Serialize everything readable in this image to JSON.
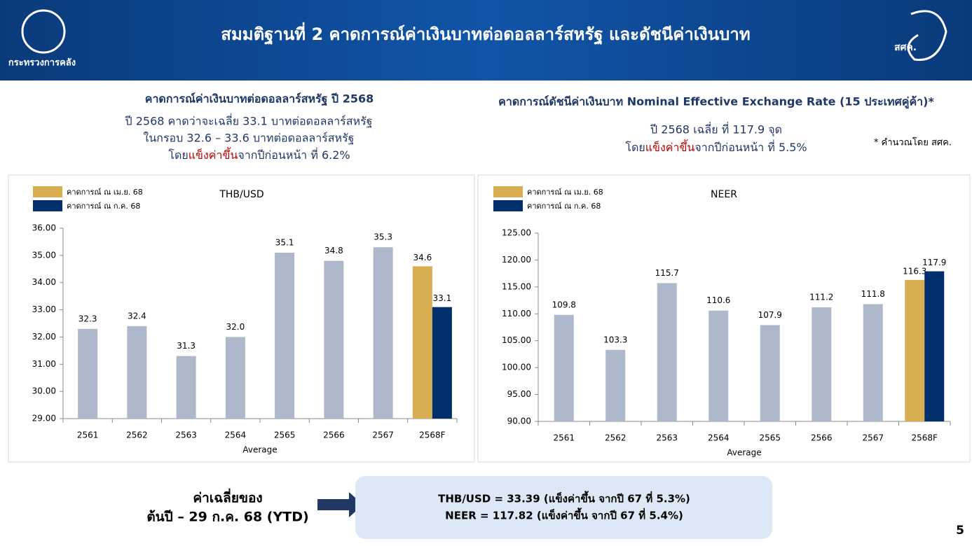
{
  "header": {
    "title": "สมมติฐานที่ 2 คาดการณ์ค่าเงินบาทต่อดอลลาร์สหรัฐ และดัชนีค่าเงินบาท",
    "left_logo": "กระทรวงการคลัง",
    "right_logo": "สศค."
  },
  "left_section": {
    "heading": "คาดการณ์ค่าเงินบาทต่อดอลลาร์สหรัฐ ปี 2568",
    "line1": "ปี 2568 คาดว่าจะเฉลี่ย 33.1 บาทต่อดอลลาร์สหรัฐ",
    "line2": "ในกรอบ 32.6 – 33.6 บาทต่อดอลลาร์สหรัฐ",
    "line3": [
      "โดย",
      "แข็งค่าขึ้น",
      "จากปีก่อนหน้า ที่ 6.2%"
    ]
  },
  "right_section": {
    "heading": "คาดการณ์ดัชนีค่าเงินบาท Nominal Effective Exchange Rate (15 ประเทศคู่ค้า)*",
    "line1": "ปี 2568 เฉลี่ย ที่ 117.9 จุด",
    "line2": [
      "โดย",
      "แข็งค่าขึ้น",
      "จากปีก่อนหน้า ที่ 5.5%"
    ],
    "note": "* คำนวณโดย สศค."
  },
  "chart_data": [
    {
      "type": "bar",
      "title": "THB/USD",
      "xlabel": "Average",
      "categories": [
        "2561",
        "2562",
        "2563",
        "2564",
        "2565",
        "2566",
        "2567",
        "2568F"
      ],
      "values": [
        32.3,
        32.4,
        31.3,
        32.0,
        35.1,
        34.8,
        35.3,
        null
      ],
      "value_labels": [
        "32.3",
        "32.4",
        "31.3",
        "32.0",
        "35.1",
        "34.8",
        "35.3",
        null
      ],
      "color": "#adb9ca",
      "series": [
        {
          "name": "คาดการณ์ ณ เม.ย. 68",
          "color": "#d6ad51",
          "values": [
            null,
            null,
            null,
            null,
            null,
            null,
            null,
            34.6
          ]
        },
        {
          "name": "คาดการณ์ ณ ก.ค. 68",
          "color": "#002f6c",
          "values": [
            null,
            null,
            null,
            null,
            null,
            null,
            null,
            33.1
          ]
        }
      ],
      "ylim": [
        29,
        36
      ],
      "yticks": [
        {
          "value": 29,
          "label": "29.00"
        },
        {
          "value": 30,
          "label": "30.00"
        },
        {
          "value": 31,
          "label": "31.00"
        },
        {
          "value": 32,
          "label": "32.00"
        },
        {
          "value": 33,
          "label": "33.00"
        },
        {
          "value": 34,
          "label": "34.00"
        },
        {
          "value": 35,
          "label": "35.00"
        },
        {
          "value": 36,
          "label": "36.00"
        }
      ],
      "grid": false,
      "legend": "upper left"
    },
    {
      "type": "bar",
      "title": "NEER",
      "xlabel": "Average",
      "categories": [
        "2561",
        "2562",
        "2563",
        "2564",
        "2565",
        "2566",
        "2567",
        "2568F"
      ],
      "values": [
        109.8,
        103.3,
        115.7,
        110.6,
        107.9,
        111.2,
        111.8,
        null
      ],
      "value_labels": [
        "109.8",
        "103.3",
        "115.7",
        "110.6",
        "107.9",
        "111.2",
        "111.8",
        null
      ],
      "color": "#adb9ca",
      "series": [
        {
          "name": "คาดการณ์ ณ เม.ย. 68",
          "color": "#d6ad51",
          "values": [
            null,
            null,
            null,
            null,
            null,
            null,
            null,
            116.3
          ]
        },
        {
          "name": "คาดการณ์ ณ ก.ค. 68",
          "color": "#002f6c",
          "values": [
            null,
            null,
            null,
            null,
            null,
            null,
            null,
            117.9
          ]
        }
      ],
      "ylim": [
        90,
        125
      ],
      "yticks": [
        {
          "value": 90,
          "label": "90.00"
        },
        {
          "value": 95,
          "label": "95.00"
        },
        {
          "value": 100,
          "label": "100.00"
        },
        {
          "value": 105,
          "label": "105.00"
        },
        {
          "value": 110,
          "label": "110.00"
        },
        {
          "value": 115,
          "label": "115.00"
        },
        {
          "value": 120,
          "label": "120.00"
        },
        {
          "value": 125,
          "label": "125.00"
        }
      ],
      "grid": false,
      "legend": "upper left"
    }
  ],
  "footer": {
    "ytd_label": [
      "ค่าเฉลี่ยของ",
      "ต้นปี – 29 ก.ค. 68 (YTD)"
    ],
    "box": [
      "THB/USD = 33.39 (แข็งค่าขึ้น จากปี 67 ที่ 5.3%)",
      "NEER = 117.82 (แข็งค่าขึ้น จากปี 67 ที่ 5.4%)"
    ],
    "page": "5"
  }
}
